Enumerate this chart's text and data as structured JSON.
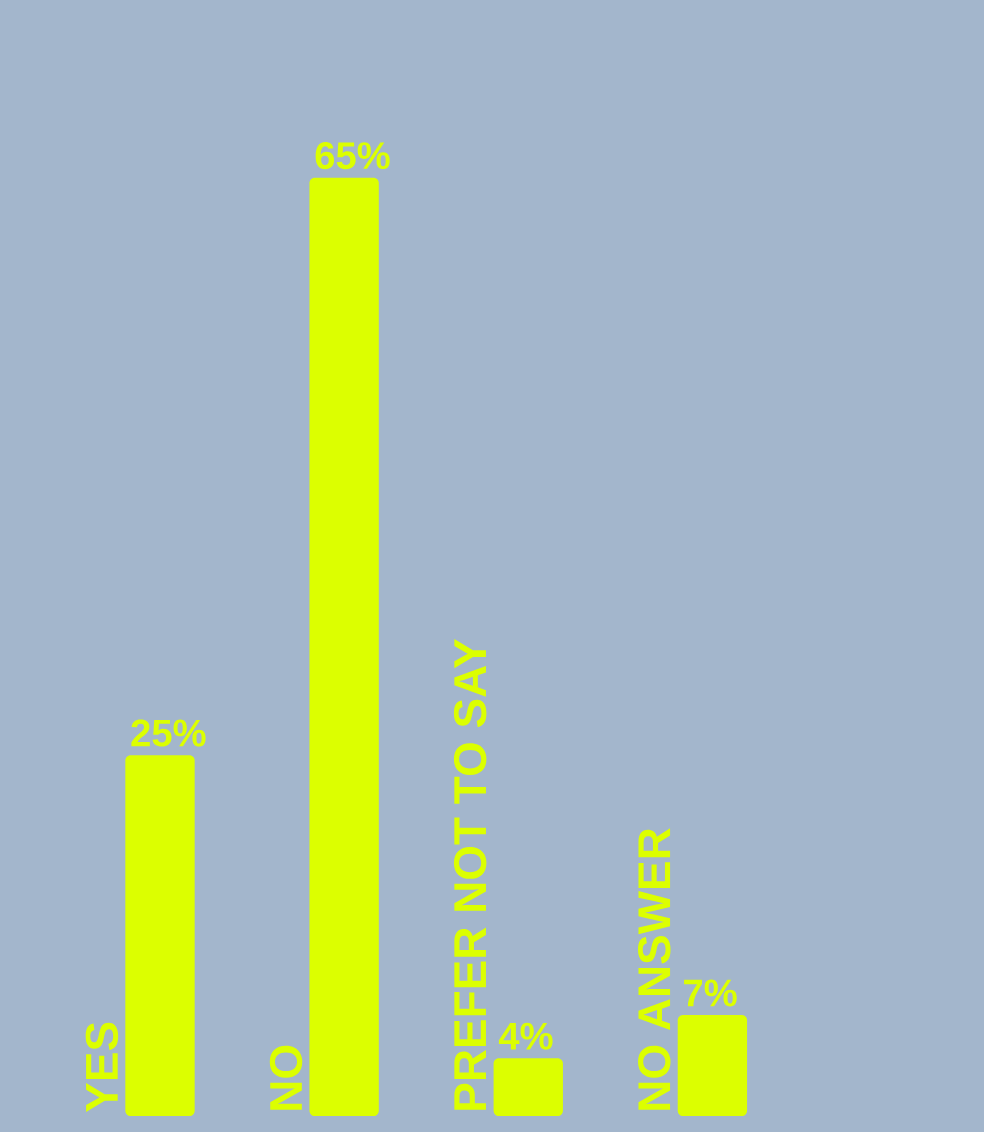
{
  "chart_data": {
    "type": "bar",
    "categories": [
      "YES",
      "NO",
      "PREFER NOT TO SAY",
      "NO ANSWER"
    ],
    "values": [
      25,
      65,
      4,
      7
    ],
    "value_labels": [
      "25%",
      "65%",
      "4%",
      "7%"
    ],
    "color": "#dcff00"
  }
}
